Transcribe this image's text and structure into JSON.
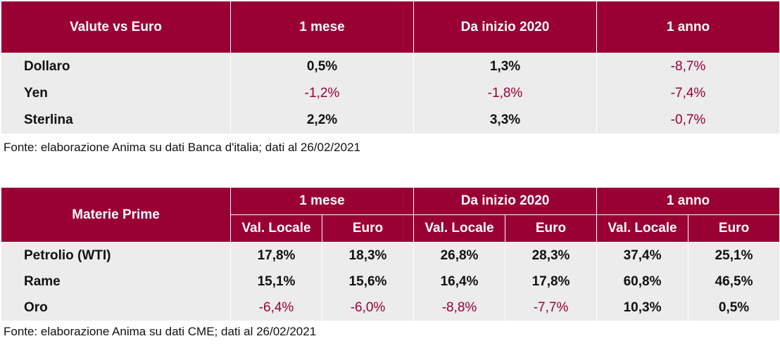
{
  "currency_table": {
    "headers": [
      "Valute vs Euro",
      "1 mese",
      "Da inizio 2020",
      "1 anno"
    ],
    "rows": [
      {
        "label": "Dollaro",
        "values": [
          "0,5%",
          "1,3%",
          "-8,7%"
        ]
      },
      {
        "label": "Yen",
        "values": [
          "-1,2%",
          "-1,8%",
          "-7,4%"
        ]
      },
      {
        "label": "Sterlina",
        "values": [
          "2,2%",
          "3,3%",
          "-0,7%"
        ]
      }
    ],
    "source": "Fonte: elaborazione Anima su dati Banca d'italia; dati al 26/02/2021"
  },
  "commodities_table": {
    "row_header": "Materie Prime",
    "groups": [
      "1 mese",
      "Da inizio 2020",
      "1 anno"
    ],
    "subheaders": [
      "Val. Locale",
      "Euro",
      "Val. Locale",
      "Euro",
      "Val. Locale",
      "Euro"
    ],
    "rows": [
      {
        "label": "Petrolio (WTI)",
        "values": [
          "17,8%",
          "18,3%",
          "26,8%",
          "28,3%",
          "37,4%",
          "25,1%"
        ]
      },
      {
        "label": "Rame",
        "values": [
          "15,1%",
          "15,6%",
          "16,4%",
          "17,8%",
          "60,8%",
          "46,5%"
        ]
      },
      {
        "label": "Oro",
        "values": [
          "-6,4%",
          "-6,0%",
          "-8,8%",
          "-7,7%",
          "10,3%",
          "0,5%"
        ]
      }
    ],
    "source": "Fonte: elaborazione Anima su dati CME; dati al 26/02/2021"
  },
  "colors": {
    "header_bg": "#990033",
    "row_bg": "#ececec",
    "negative_text": "#990033"
  }
}
